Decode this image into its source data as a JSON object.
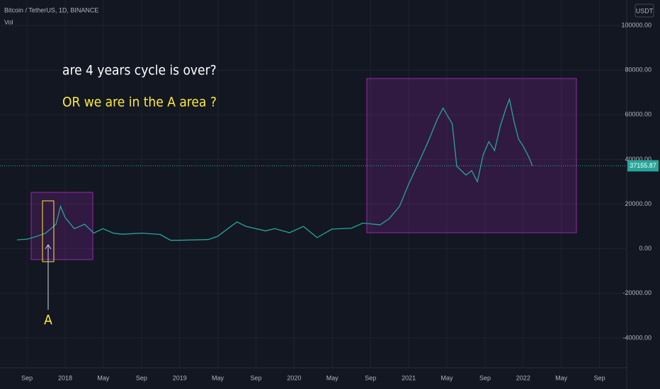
{
  "chart_data": {
    "type": "line",
    "title": "Bitcoin / TetherUS, 1D, BINANCE",
    "indicator": "Vol",
    "currency": "USDT",
    "annotations": [
      "are 4 years cycle is over?",
      "OR we are in the A area ?",
      "A"
    ],
    "last_price": 37155.87,
    "color": "#26a69a",
    "grid": true,
    "x": [
      2017.58,
      2017.67,
      2017.75,
      2017.83,
      2017.92,
      2017.96,
      2018.0,
      2018.08,
      2018.17,
      2018.25,
      2018.33,
      2018.42,
      2018.5,
      2018.67,
      2018.83,
      2018.92,
      2019.0,
      2019.25,
      2019.33,
      2019.5,
      2019.58,
      2019.75,
      2019.83,
      2019.96,
      2020.08,
      2020.2,
      2020.33,
      2020.5,
      2020.6,
      2020.75,
      2020.83,
      2020.92,
      2021.0,
      2021.1,
      2021.17,
      2021.25,
      2021.3,
      2021.38,
      2021.42,
      2021.5,
      2021.55,
      2021.6,
      2021.65,
      2021.7,
      2021.75,
      2021.8,
      2021.85,
      2021.88,
      2021.92,
      2021.96,
      2022.0,
      2022.05,
      2022.08
    ],
    "values": [
      4000,
      4300,
      5500,
      7000,
      11000,
      19000,
      14000,
      9000,
      11000,
      7000,
      9000,
      7000,
      6500,
      7000,
      6400,
      3800,
      3800,
      4100,
      5500,
      12000,
      10000,
      8000,
      9000,
      7200,
      10000,
      5000,
      8800,
      9200,
      11500,
      10700,
      13500,
      19000,
      29000,
      40000,
      48000,
      58000,
      63000,
      56000,
      37000,
      33000,
      35000,
      30000,
      42000,
      48000,
      44000,
      55000,
      63000,
      67000,
      57000,
      49000,
      46000,
      41000,
      37155.87
    ],
    "xlim": [
      2017.431,
      2022.904
    ],
    "xticks": [
      {
        "value": 2017.667,
        "label": "Sep"
      },
      {
        "value": 2018,
        "label": "2018"
      },
      {
        "value": 2018.333,
        "label": "May"
      },
      {
        "value": 2018.667,
        "label": "Sep"
      },
      {
        "value": 2019,
        "label": "2019"
      },
      {
        "value": 2019.333,
        "label": "May"
      },
      {
        "value": 2019.667,
        "label": "Sep"
      },
      {
        "value": 2020,
        "label": "2020"
      },
      {
        "value": 2020.333,
        "label": "May"
      },
      {
        "value": 2020.667,
        "label": "Sep"
      },
      {
        "value": 2021,
        "label": "2021"
      },
      {
        "value": 2021.333,
        "label": "May"
      },
      {
        "value": 2021.667,
        "label": "Sep"
      },
      {
        "value": 2022,
        "label": "2022"
      },
      {
        "value": 2022.333,
        "label": "May"
      },
      {
        "value": 2022.667,
        "label": "Sep"
      }
    ],
    "ylim": [
      -53333,
      111429
    ],
    "yticks": [
      {
        "value": 100000,
        "label": "100000.00"
      },
      {
        "value": 80000,
        "label": "80000.00"
      },
      {
        "value": 60000,
        "label": "60000.00"
      },
      {
        "value": 40000,
        "label": "40000.00"
      },
      {
        "value": 20000,
        "label": "20000.00"
      },
      {
        "value": 0,
        "label": "0.00"
      },
      {
        "value": -20000,
        "label": "-20000.00"
      },
      {
        "value": -40000,
        "label": "-40000.00"
      }
    ]
  }
}
